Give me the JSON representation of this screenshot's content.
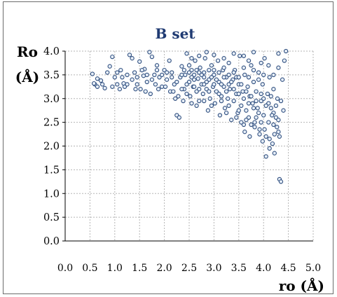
{
  "chart_data": {
    "type": "scatter",
    "title": "B set",
    "ylabel": [
      "Ro",
      "(Å)"
    ],
    "xlabel": "ro (Å)",
    "xlim": [
      0.0,
      5.0
    ],
    "ylim": [
      0.0,
      4.0
    ],
    "x_ticks": [
      "0.0",
      "0.5",
      "1.0",
      "1.5",
      "2.0",
      "2.5",
      "3.0",
      "3.5",
      "4.0",
      "4.5",
      "5.0"
    ],
    "y_ticks": [
      "0.0",
      "0.5",
      "1.0",
      "1.5",
      "2.0",
      "2.5",
      "3.0",
      "3.5",
      "4.0"
    ],
    "grid": true,
    "marker_color": "#2f4e7e",
    "title_color": "#1f3a72",
    "points": [
      [
        0.55,
        3.52
      ],
      [
        0.6,
        3.3
      ],
      [
        0.65,
        3.42
      ],
      [
        0.72,
        3.38
      ],
      [
        0.8,
        3.22
      ],
      [
        0.85,
        3.55
      ],
      [
        0.9,
        3.68
      ],
      [
        0.95,
        3.88
      ],
      [
        1.0,
        3.45
      ],
      [
        1.05,
        3.3
      ],
      [
        1.1,
        3.2
      ],
      [
        1.12,
        3.6
      ],
      [
        1.18,
        3.32
      ],
      [
        1.2,
        3.25
      ],
      [
        1.25,
        3.5
      ],
      [
        1.3,
        3.92
      ],
      [
        1.35,
        3.4
      ],
      [
        1.4,
        3.55
      ],
      [
        1.45,
        3.3
      ],
      [
        1.5,
        3.78
      ],
      [
        1.52,
        3.2
      ],
      [
        1.58,
        3.48
      ],
      [
        1.6,
        3.62
      ],
      [
        1.65,
        3.35
      ],
      [
        1.7,
        3.98
      ],
      [
        1.72,
        3.1
      ],
      [
        1.75,
        3.88
      ],
      [
        1.8,
        3.5
      ],
      [
        1.82,
        3.3
      ],
      [
        1.85,
        3.7
      ],
      [
        1.9,
        3.45
      ],
      [
        1.95,
        3.25
      ],
      [
        2.0,
        3.6
      ],
      [
        2.05,
        3.4
      ],
      [
        2.1,
        3.8
      ],
      [
        2.12,
        3.15
      ],
      [
        2.15,
        3.55
      ],
      [
        2.2,
        3.3
      ],
      [
        2.22,
        3.0
      ],
      [
        2.25,
        2.65
      ],
      [
        2.3,
        2.6
      ],
      [
        2.32,
        3.45
      ],
      [
        2.35,
        3.68
      ],
      [
        2.4,
        3.2
      ],
      [
        2.42,
        3.5
      ],
      [
        2.45,
        3.95
      ],
      [
        2.5,
        3.35
      ],
      [
        2.52,
        3.05
      ],
      [
        2.55,
        3.6
      ],
      [
        2.58,
        3.25
      ],
      [
        2.6,
        3.5
      ],
      [
        2.62,
        3.8
      ],
      [
        2.65,
        3.15
      ],
      [
        2.68,
        3.42
      ],
      [
        2.7,
        2.95
      ],
      [
        2.72,
        3.65
      ],
      [
        2.75,
        3.3
      ],
      [
        2.78,
        3.1
      ],
      [
        2.8,
        3.55
      ],
      [
        2.82,
        3.85
      ],
      [
        2.85,
        3.2
      ],
      [
        2.88,
        2.75
      ],
      [
        2.9,
        3.4
      ],
      [
        2.92,
        3.0
      ],
      [
        2.95,
        3.7
      ],
      [
        2.98,
        3.25
      ],
      [
        3.0,
        3.5
      ],
      [
        3.02,
        2.9
      ],
      [
        3.05,
        3.15
      ],
      [
        3.08,
        3.8
      ],
      [
        3.1,
        3.35
      ],
      [
        3.12,
        2.65
      ],
      [
        3.15,
        3.05
      ],
      [
        3.18,
        3.6
      ],
      [
        3.2,
        3.25
      ],
      [
        3.22,
        2.8
      ],
      [
        3.25,
        3.45
      ],
      [
        3.28,
        3.0
      ],
      [
        3.3,
        3.75
      ],
      [
        3.32,
        3.2
      ],
      [
        3.35,
        2.55
      ],
      [
        3.38,
        3.4
      ],
      [
        3.4,
        2.95
      ],
      [
        3.42,
        3.6
      ],
      [
        3.45,
        3.1
      ],
      [
        3.48,
        2.7
      ],
      [
        3.5,
        3.3
      ],
      [
        3.52,
        3.9
      ],
      [
        3.55,
        2.85
      ],
      [
        3.58,
        3.15
      ],
      [
        3.6,
        2.45
      ],
      [
        3.62,
        3.5
      ],
      [
        3.65,
        2.75
      ],
      [
        3.68,
        3.25
      ],
      [
        3.7,
        2.6
      ],
      [
        3.72,
        3.05
      ],
      [
        3.75,
        3.7
      ],
      [
        3.78,
        2.9
      ],
      [
        3.8,
        3.35
      ],
      [
        3.82,
        2.5
      ],
      [
        3.85,
        3.15
      ],
      [
        3.88,
        2.8
      ],
      [
        3.9,
        3.55
      ],
      [
        3.92,
        2.35
      ],
      [
        3.95,
        2.95
      ],
      [
        3.98,
        3.3
      ],
      [
        4.0,
        2.65
      ],
      [
        4.02,
        3.85
      ],
      [
        4.05,
        2.2
      ],
      [
        4.08,
        3.1
      ],
      [
        4.1,
        2.5
      ],
      [
        4.12,
        3.45
      ],
      [
        4.15,
        2.8
      ],
      [
        4.18,
        2.05
      ],
      [
        4.2,
        3.2
      ],
      [
        4.22,
        1.85
      ],
      [
        4.25,
        2.6
      ],
      [
        4.28,
        3.0
      ],
      [
        4.3,
        2.3
      ],
      [
        4.32,
        1.3
      ],
      [
        4.35,
        1.25
      ],
      [
        4.38,
        3.4
      ],
      [
        4.4,
        2.75
      ],
      [
        4.42,
        3.8
      ],
      [
        4.45,
        4.0
      ],
      [
        4.3,
        3.95
      ],
      [
        4.05,
        1.78
      ],
      [
        4.12,
        1.95
      ],
      [
        3.98,
        2.1
      ],
      [
        4.2,
        2.45
      ],
      [
        2.5,
        3.7
      ],
      [
        2.6,
        3.4
      ],
      [
        2.7,
        3.2
      ],
      [
        2.8,
        3.45
      ],
      [
        2.9,
        3.6
      ],
      [
        3.0,
        3.3
      ],
      [
        3.1,
        3.55
      ],
      [
        3.2,
        3.45
      ],
      [
        3.3,
        3.3
      ],
      [
        3.4,
        3.2
      ],
      [
        3.5,
        3.1
      ],
      [
        3.6,
        3.0
      ],
      [
        3.7,
        2.9
      ],
      [
        3.8,
        2.8
      ],
      [
        3.9,
        2.7
      ],
      [
        4.0,
        3.0
      ],
      [
        4.1,
        2.9
      ],
      [
        4.2,
        2.7
      ],
      [
        4.3,
        2.55
      ],
      [
        2.45,
        3.3
      ],
      [
        2.55,
        3.45
      ],
      [
        2.65,
        3.6
      ],
      [
        2.75,
        3.5
      ],
      [
        2.85,
        3.35
      ],
      [
        2.95,
        3.45
      ],
      [
        3.05,
        3.4
      ],
      [
        3.15,
        3.3
      ],
      [
        3.25,
        3.15
      ],
      [
        3.35,
        3.35
      ],
      [
        3.45,
        3.45
      ],
      [
        3.55,
        3.3
      ],
      [
        3.65,
        3.15
      ],
      [
        3.75,
        3.05
      ],
      [
        3.85,
        2.95
      ],
      [
        3.95,
        3.1
      ],
      [
        4.05,
        2.85
      ],
      [
        4.15,
        3.05
      ],
      [
        4.25,
        2.85
      ],
      [
        4.35,
        2.95
      ],
      [
        2.35,
        3.5
      ],
      [
        2.4,
        3.6
      ],
      [
        2.5,
        3.55
      ],
      [
        2.6,
        3.25
      ],
      [
        2.7,
        3.55
      ],
      [
        2.8,
        3.3
      ],
      [
        2.9,
        3.15
      ],
      [
        3.0,
        3.6
      ],
      [
        3.1,
        3.1
      ],
      [
        3.2,
        3.65
      ],
      [
        3.3,
        3.5
      ],
      [
        3.4,
        3.55
      ],
      [
        3.5,
        3.45
      ],
      [
        3.6,
        3.65
      ],
      [
        3.7,
        3.45
      ],
      [
        3.8,
        3.6
      ],
      [
        3.9,
        3.4
      ],
      [
        4.0,
        3.5
      ],
      [
        4.1,
        3.7
      ],
      [
        4.2,
        3.5
      ],
      [
        4.3,
        3.65
      ],
      [
        3.6,
        3.9
      ],
      [
        3.8,
        3.98
      ],
      [
        3.4,
        3.95
      ],
      [
        3.2,
        3.85
      ],
      [
        3.0,
        3.92
      ],
      [
        2.85,
        3.98
      ],
      [
        2.7,
        3.9
      ],
      [
        2.55,
        3.85
      ],
      [
        3.7,
        3.8
      ],
      [
        3.95,
        3.75
      ],
      [
        3.45,
        2.6
      ],
      [
        3.55,
        2.5
      ],
      [
        3.65,
        2.55
      ],
      [
        3.75,
        2.45
      ],
      [
        3.85,
        2.6
      ],
      [
        3.95,
        2.5
      ],
      [
        3.5,
        2.75
      ],
      [
        3.3,
        2.85
      ],
      [
        3.15,
        2.95
      ],
      [
        3.25,
        2.7
      ],
      [
        2.95,
        2.85
      ],
      [
        2.8,
        2.95
      ],
      [
        2.65,
        2.85
      ],
      [
        2.55,
        2.9
      ],
      [
        2.45,
        3.1
      ],
      [
        2.35,
        3.2
      ],
      [
        2.25,
        3.35
      ],
      [
        2.15,
        3.45
      ],
      [
        2.05,
        3.55
      ],
      [
        1.95,
        3.5
      ],
      [
        1.85,
        3.6
      ],
      [
        1.75,
        3.4
      ],
      [
        1.65,
        3.5
      ],
      [
        1.55,
        3.6
      ],
      [
        1.45,
        3.45
      ],
      [
        1.35,
        3.85
      ],
      [
        1.25,
        3.3
      ],
      [
        1.15,
        3.45
      ],
      [
        1.05,
        3.55
      ],
      [
        0.95,
        3.25
      ],
      [
        0.75,
        3.3
      ],
      [
        0.65,
        3.25
      ],
      [
        0.58,
        3.32
      ],
      [
        1.42,
        3.2
      ],
      [
        1.62,
        3.15
      ],
      [
        1.88,
        3.2
      ],
      [
        2.02,
        3.25
      ],
      [
        2.18,
        3.15
      ],
      [
        2.28,
        3.05
      ],
      [
        2.38,
        2.95
      ],
      [
        3.62,
        2.3
      ],
      [
        3.72,
        2.2
      ],
      [
        3.82,
        2.4
      ],
      [
        3.92,
        2.25
      ],
      [
        4.02,
        2.35
      ],
      [
        4.12,
        2.15
      ],
      [
        4.22,
        2.25
      ],
      [
        4.32,
        2.2
      ],
      [
        4.27,
        2.4
      ],
      [
        4.17,
        2.65
      ]
    ]
  }
}
